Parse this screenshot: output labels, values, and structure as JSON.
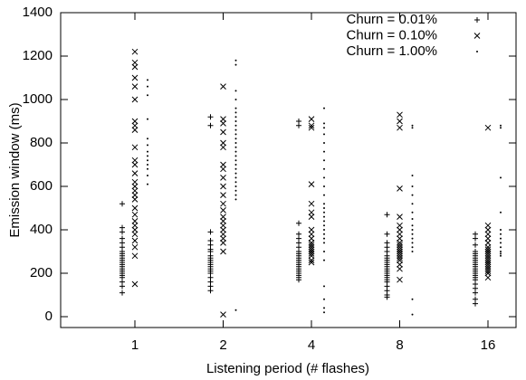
{
  "chart_data": {
    "type": "scatter",
    "x_label": "Listening period (# flashes)",
    "y_label": "Emission window (ms)",
    "categories": [
      "1",
      "2",
      "4",
      "8",
      "16"
    ],
    "ylim": [
      -50,
      1400
    ],
    "yticks": [
      0,
      200,
      400,
      600,
      800,
      1000,
      1200,
      1400
    ],
    "legend": "top-right",
    "series": [
      {
        "name": "Churn = 0.01%",
        "marker": "plus",
        "color": "#000000",
        "values": [
          [
            520,
            410,
            390,
            360,
            340,
            320,
            300,
            290,
            280,
            270,
            260,
            250,
            240,
            230,
            220,
            210,
            200,
            190,
            180,
            160,
            140,
            110
          ],
          [
            920,
            880,
            390,
            350,
            330,
            310,
            300,
            280,
            270,
            260,
            250,
            240,
            230,
            220,
            210,
            200,
            180,
            160,
            140,
            120
          ],
          [
            900,
            880,
            430,
            380,
            360,
            340,
            320,
            300,
            290,
            280,
            270,
            260,
            250,
            240,
            230,
            220,
            210,
            200,
            190,
            180,
            170
          ],
          [
            470,
            380,
            340,
            320,
            300,
            280,
            270,
            260,
            250,
            240,
            230,
            220,
            210,
            200,
            190,
            180,
            170,
            160,
            140,
            120,
            100,
            90
          ],
          [
            380,
            360,
            330,
            300,
            290,
            280,
            270,
            260,
            250,
            240,
            230,
            220,
            210,
            200,
            190,
            180,
            170,
            150,
            130,
            110,
            80,
            60
          ]
        ]
      },
      {
        "name": "Churn = 0.10%",
        "marker": "cross",
        "color": "#000000",
        "values": [
          [
            1220,
            1170,
            1150,
            1100,
            1060,
            1000,
            900,
            880,
            860,
            780,
            720,
            700,
            660,
            620,
            600,
            580,
            560,
            540,
            500,
            470,
            440,
            420,
            400,
            380,
            350,
            320,
            280,
            150
          ],
          [
            1060,
            910,
            890,
            850,
            800,
            780,
            700,
            680,
            640,
            600,
            560,
            520,
            490,
            460,
            440,
            420,
            400,
            380,
            360,
            340,
            300,
            10
          ],
          [
            910,
            880,
            870,
            610,
            520,
            480,
            460,
            400,
            380,
            360,
            340,
            330,
            320,
            310,
            300,
            290,
            280,
            260,
            250
          ],
          [
            930,
            900,
            870,
            590,
            460,
            420,
            400,
            380,
            360,
            340,
            330,
            320,
            310,
            300,
            290,
            280,
            270,
            260,
            240,
            220,
            170
          ],
          [
            870,
            420,
            400,
            380,
            360,
            340,
            320,
            310,
            300,
            290,
            280,
            270,
            260,
            250,
            240,
            230,
            220,
            210,
            200,
            180
          ]
        ]
      },
      {
        "name": "Churn = 1.00%",
        "marker": "dot",
        "color": "#000000",
        "values": [
          [
            1090,
            1060,
            1020,
            910,
            820,
            790,
            760,
            740,
            720,
            700,
            680,
            650,
            610
          ],
          [
            1180,
            1160,
            1040,
            1000,
            960,
            940,
            920,
            900,
            880,
            860,
            840,
            820,
            800,
            780,
            760,
            740,
            720,
            700,
            680,
            660,
            640,
            620,
            600,
            580,
            560,
            540,
            30
          ],
          [
            960,
            890,
            870,
            840,
            800,
            760,
            720,
            680,
            640,
            600,
            560,
            520,
            500,
            480,
            460,
            440,
            420,
            400,
            380,
            360,
            340,
            300,
            260,
            140,
            80,
            40,
            20
          ],
          [
            880,
            870,
            650,
            600,
            560,
            520,
            480,
            450,
            420,
            400,
            380,
            360,
            340,
            320,
            300,
            80,
            10
          ],
          [
            880,
            870,
            640,
            480,
            400,
            380,
            360,
            340,
            320,
            300,
            290,
            280
          ]
        ]
      }
    ]
  }
}
